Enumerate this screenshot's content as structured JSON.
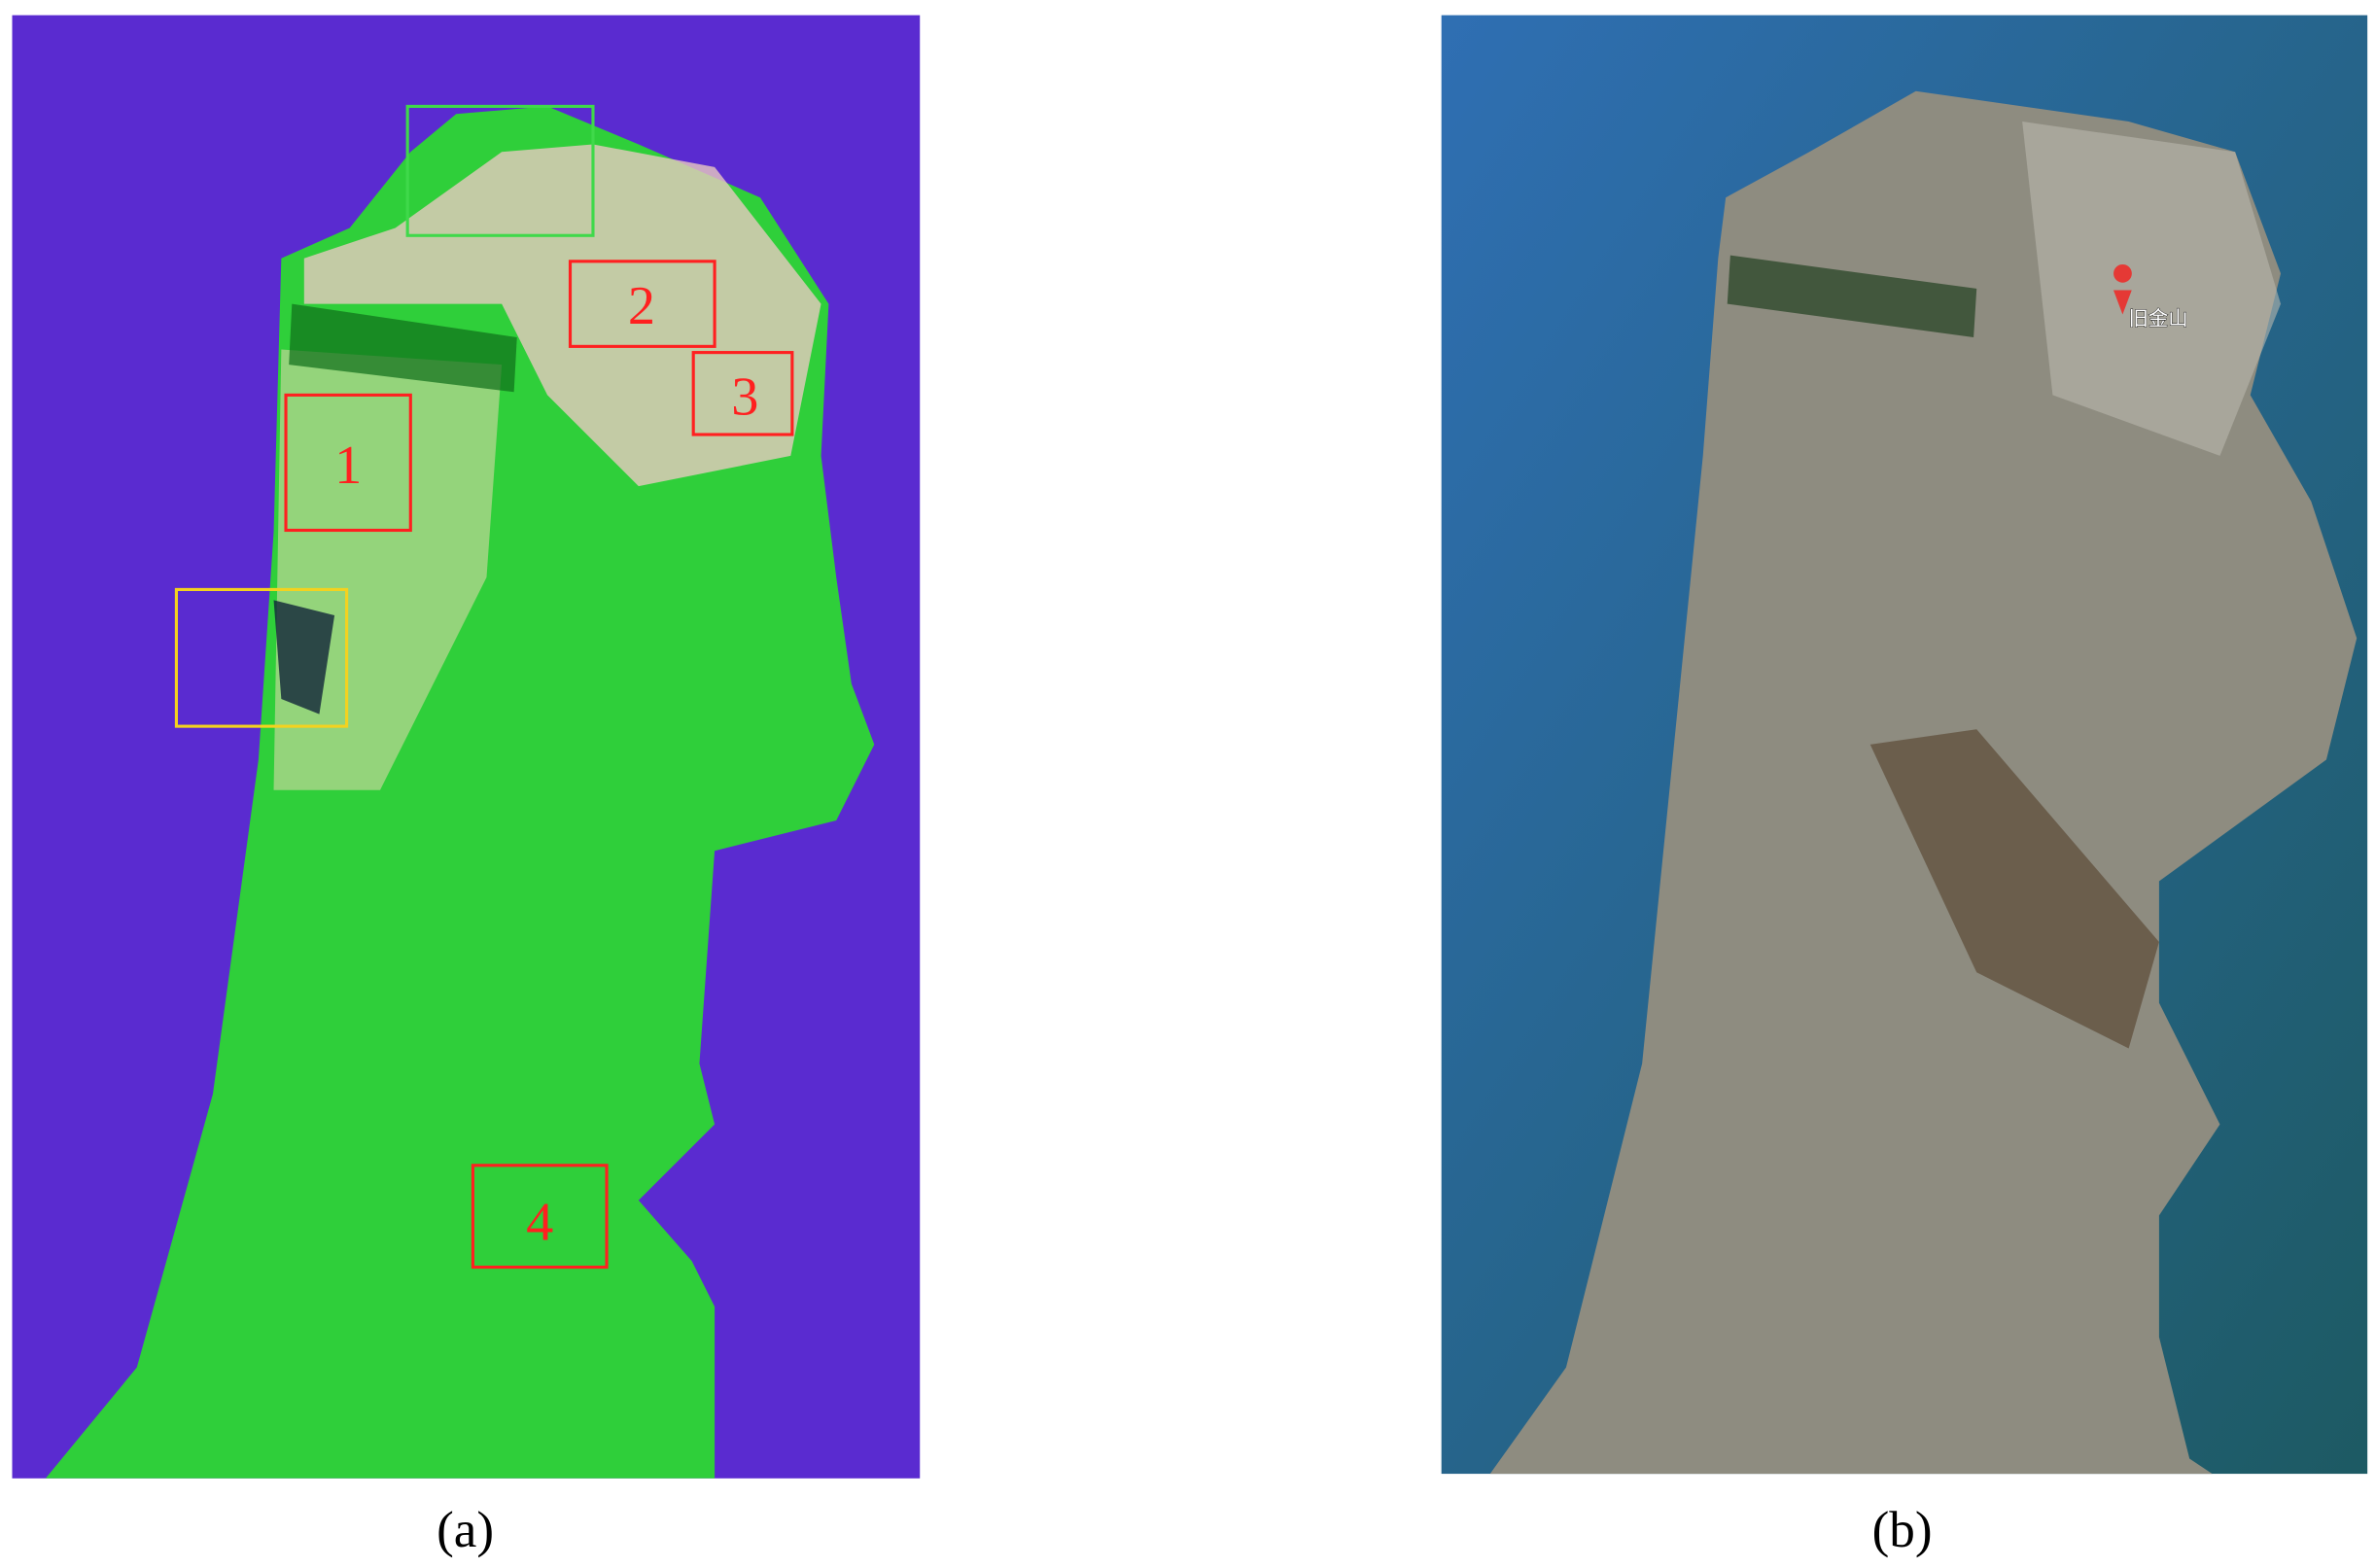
{
  "panels": [
    {
      "caption": "(a)",
      "regions": [
        {
          "label": "1"
        },
        {
          "label": "2"
        },
        {
          "label": "3"
        },
        {
          "label": "4"
        }
      ]
    },
    {
      "caption": "(b)",
      "place_label": "旧金山"
    }
  ]
}
